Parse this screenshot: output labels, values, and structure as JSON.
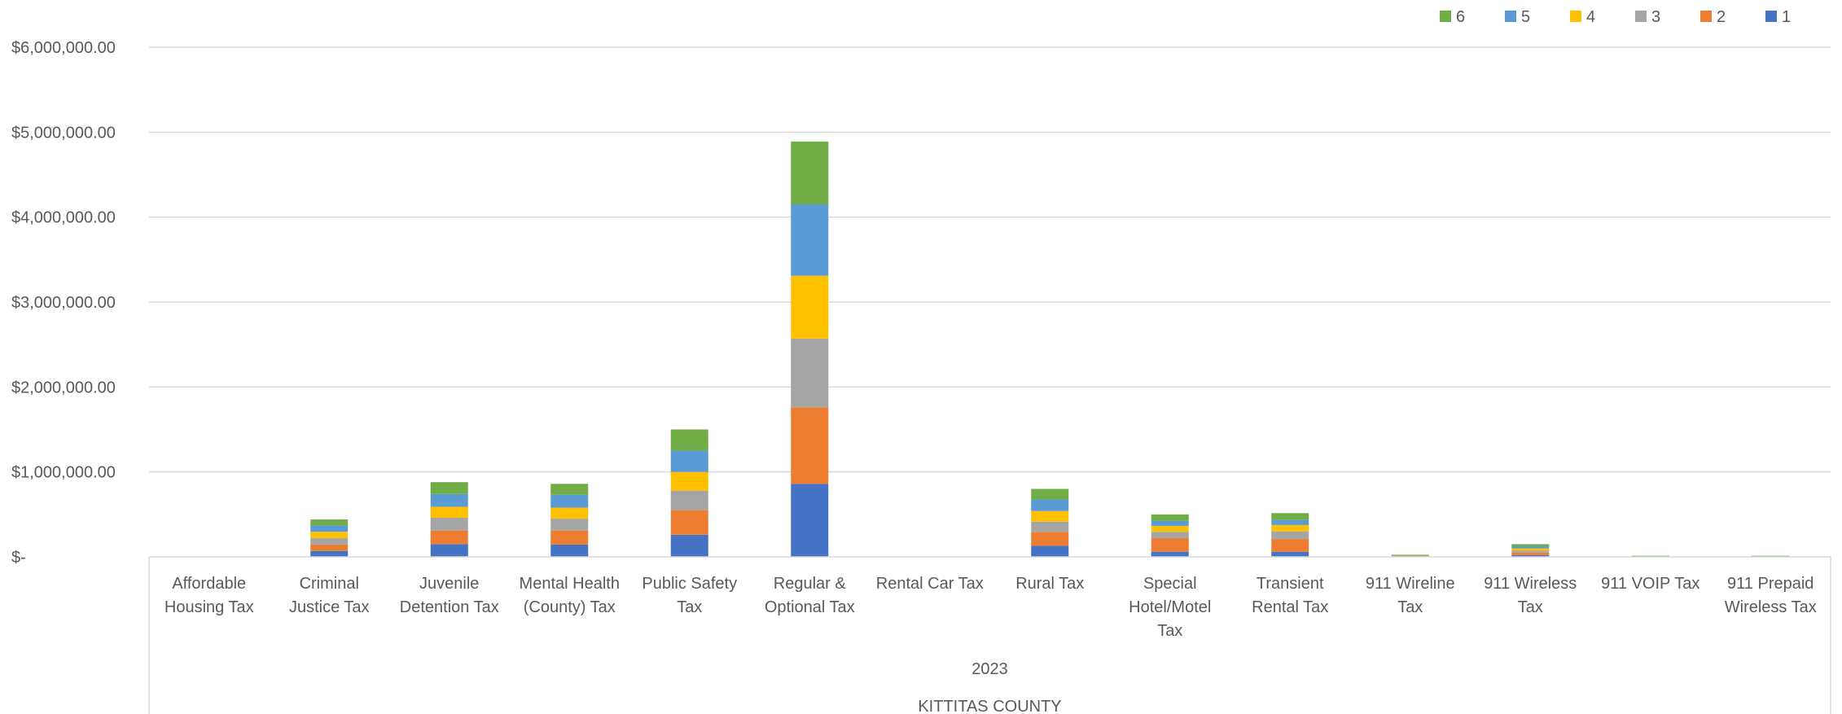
{
  "chart_data": {
    "type": "bar",
    "stacked": true,
    "title": "",
    "xlabel": "",
    "ylabel": "",
    "ylim": [
      0,
      6000000
    ],
    "y_ticks": [
      {
        "value": 0,
        "label": "$-"
      },
      {
        "value": 1000000,
        "label": "$1,000,000.00"
      },
      {
        "value": 2000000,
        "label": "$2,000,000.00"
      },
      {
        "value": 3000000,
        "label": "$3,000,000.00"
      },
      {
        "value": 4000000,
        "label": "$4,000,000.00"
      },
      {
        "value": 5000000,
        "label": "$5,000,000.00"
      },
      {
        "value": 6000000,
        "label": "$6,000,000.00"
      }
    ],
    "grid": true,
    "legend_position": "top-right",
    "categories": [
      [
        "Affordable",
        "Housing Tax"
      ],
      [
        "Criminal",
        "Justice Tax"
      ],
      [
        "Juvenile",
        "Detention Tax"
      ],
      [
        "Mental Health",
        "(County) Tax"
      ],
      [
        "Public Safety",
        "Tax"
      ],
      [
        "Regular &",
        "Optional Tax"
      ],
      [
        "Rental Car Tax"
      ],
      [
        "Rural Tax"
      ],
      [
        "Special",
        "Hotel/Motel",
        "Tax"
      ],
      [
        "Transient",
        "Rental Tax"
      ],
      [
        "911 Wireline",
        "Tax"
      ],
      [
        "911 Wireless",
        "Tax"
      ],
      [
        "911 VOIP Tax"
      ],
      [
        "911 Prepaid",
        "Wireless Tax"
      ]
    ],
    "group_labels": [
      "2023",
      "KITTITAS COUNTY"
    ],
    "series": [
      {
        "name": "1",
        "color": "#4472C4",
        "values": [
          0,
          70000,
          150000,
          145000,
          260000,
          860000,
          0,
          130000,
          60000,
          60000,
          5000,
          20000,
          3000,
          3000
        ]
      },
      {
        "name": "2",
        "color": "#ED7D31",
        "values": [
          0,
          75000,
          160000,
          165000,
          290000,
          900000,
          0,
          165000,
          160000,
          150000,
          4000,
          30000,
          2000,
          2000
        ]
      },
      {
        "name": "3",
        "color": "#A5A5A5",
        "values": [
          0,
          75000,
          150000,
          140000,
          230000,
          810000,
          0,
          120000,
          75000,
          90000,
          4000,
          25000,
          2000,
          2000
        ]
      },
      {
        "name": "4",
        "color": "#FFC000",
        "values": [
          0,
          75000,
          130000,
          130000,
          220000,
          740000,
          0,
          125000,
          70000,
          75000,
          4000,
          25000,
          2000,
          2000
        ]
      },
      {
        "name": "5",
        "color": "#5B9BD5",
        "values": [
          0,
          75000,
          150000,
          150000,
          250000,
          840000,
          0,
          135000,
          60000,
          60000,
          4000,
          25000,
          2000,
          2000
        ]
      },
      {
        "name": "6",
        "color": "#70AD47",
        "values": [
          0,
          70000,
          140000,
          130000,
          250000,
          740000,
          0,
          125000,
          75000,
          80000,
          4000,
          25000,
          2000,
          2000
        ]
      }
    ]
  }
}
